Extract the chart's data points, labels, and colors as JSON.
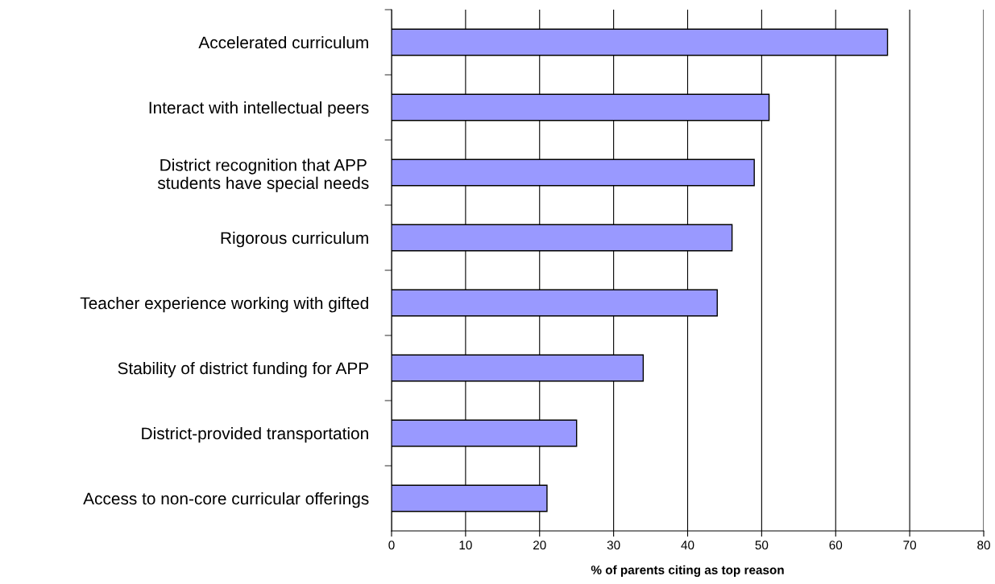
{
  "chart_data": {
    "type": "bar",
    "orientation": "horizontal",
    "categories": [
      "Accelerated curriculum",
      "Interact with intellectual peers",
      "District recognition that APP\nstudents have special needs",
      "Rigorous curriculum",
      "Teacher experience working with gifted",
      "Stability of district funding for APP",
      "District-provided transportation",
      "Access to non-core curricular offerings"
    ],
    "values": [
      67,
      51,
      49,
      46,
      44,
      34,
      25,
      21
    ],
    "color": "#9999ff",
    "xlabel": "% of parents citing as top reason",
    "xlim": [
      0,
      80
    ],
    "xticks": [
      0,
      10,
      20,
      30,
      40,
      50,
      60,
      70,
      80
    ],
    "grid": "x",
    "legend": false
  }
}
